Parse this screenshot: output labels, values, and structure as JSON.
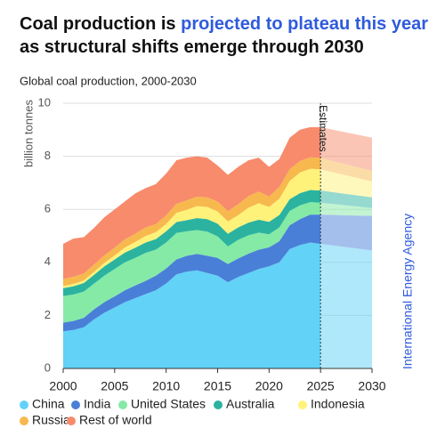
{
  "chart_data": {
    "type": "stacked-area",
    "title_parts": [
      "Coal production is ",
      "projected to plateau this year",
      " as structural shifts emerge through 2030"
    ],
    "subtitle": "Global coal production, 2000-2030",
    "y_label": "billion tonnes",
    "annotation": "Estimates",
    "estimate_start": 2025,
    "source": "International Energy Agency",
    "x": [
      2000,
      2001,
      2002,
      2003,
      2004,
      2005,
      2006,
      2007,
      2008,
      2009,
      2010,
      2011,
      2012,
      2013,
      2014,
      2015,
      2016,
      2017,
      2018,
      2019,
      2020,
      2021,
      2022,
      2023,
      2024,
      2025,
      2030
    ],
    "series": [
      {
        "name": "China",
        "color": "#62d2f7",
        "values": [
          1.4,
          1.45,
          1.55,
          1.85,
          2.1,
          2.3,
          2.5,
          2.65,
          2.8,
          2.95,
          3.2,
          3.55,
          3.65,
          3.7,
          3.6,
          3.5,
          3.25,
          3.45,
          3.6,
          3.75,
          3.85,
          4.0,
          4.5,
          4.65,
          4.75,
          4.7,
          4.45
        ]
      },
      {
        "name": "India",
        "color": "#4a7fd8",
        "values": [
          0.33,
          0.34,
          0.36,
          0.38,
          0.4,
          0.42,
          0.45,
          0.48,
          0.5,
          0.55,
          0.57,
          0.56,
          0.6,
          0.62,
          0.65,
          0.67,
          0.69,
          0.7,
          0.73,
          0.73,
          0.72,
          0.8,
          0.9,
          0.98,
          1.05,
          1.1,
          1.3
        ]
      },
      {
        "name": "United States",
        "color": "#84eaa6",
        "values": [
          1.0,
          1.0,
          0.99,
          0.97,
          1.0,
          1.03,
          1.05,
          1.04,
          1.06,
          0.98,
          0.98,
          1.0,
          0.92,
          0.9,
          0.91,
          0.81,
          0.66,
          0.7,
          0.69,
          0.64,
          0.49,
          0.52,
          0.54,
          0.52,
          0.47,
          0.45,
          0.3
        ]
      },
      {
        "name": "Australia",
        "color": "#2bb3a0",
        "values": [
          0.3,
          0.31,
          0.32,
          0.33,
          0.35,
          0.36,
          0.37,
          0.38,
          0.39,
          0.4,
          0.42,
          0.41,
          0.42,
          0.45,
          0.47,
          0.48,
          0.48,
          0.47,
          0.48,
          0.49,
          0.47,
          0.47,
          0.44,
          0.46,
          0.46,
          0.46,
          0.4
        ]
      },
      {
        "name": "Indonesia",
        "color": "#fff27a",
        "values": [
          0.08,
          0.09,
          0.1,
          0.11,
          0.13,
          0.15,
          0.19,
          0.22,
          0.24,
          0.26,
          0.28,
          0.35,
          0.39,
          0.45,
          0.46,
          0.46,
          0.46,
          0.46,
          0.56,
          0.62,
          0.56,
          0.61,
          0.69,
          0.78,
          0.8,
          0.8,
          0.6
        ]
      },
      {
        "name": "Russia",
        "color": "#f7b84e",
        "values": [
          0.26,
          0.27,
          0.26,
          0.28,
          0.28,
          0.3,
          0.31,
          0.31,
          0.33,
          0.3,
          0.32,
          0.34,
          0.36,
          0.36,
          0.36,
          0.37,
          0.39,
          0.41,
          0.44,
          0.44,
          0.4,
          0.44,
          0.44,
          0.43,
          0.43,
          0.43,
          0.4
        ]
      },
      {
        "name": "Rest of world",
        "color": "#f78b6c",
        "values": [
          1.33,
          1.44,
          1.37,
          1.38,
          1.44,
          1.44,
          1.43,
          1.52,
          1.48,
          1.51,
          1.58,
          1.64,
          1.61,
          1.52,
          1.5,
          1.36,
          1.37,
          1.41,
          1.35,
          1.28,
          1.11,
          1.06,
          1.19,
          1.18,
          1.14,
          1.16,
          1.25
        ]
      }
    ],
    "xlim": [
      2000,
      2030
    ],
    "xticks": [
      2000,
      2005,
      2010,
      2015,
      2020,
      2025,
      2030
    ],
    "ylim": [
      0,
      10
    ],
    "yticks": [
      0,
      2,
      4,
      6,
      8,
      10
    ],
    "grid": true
  }
}
